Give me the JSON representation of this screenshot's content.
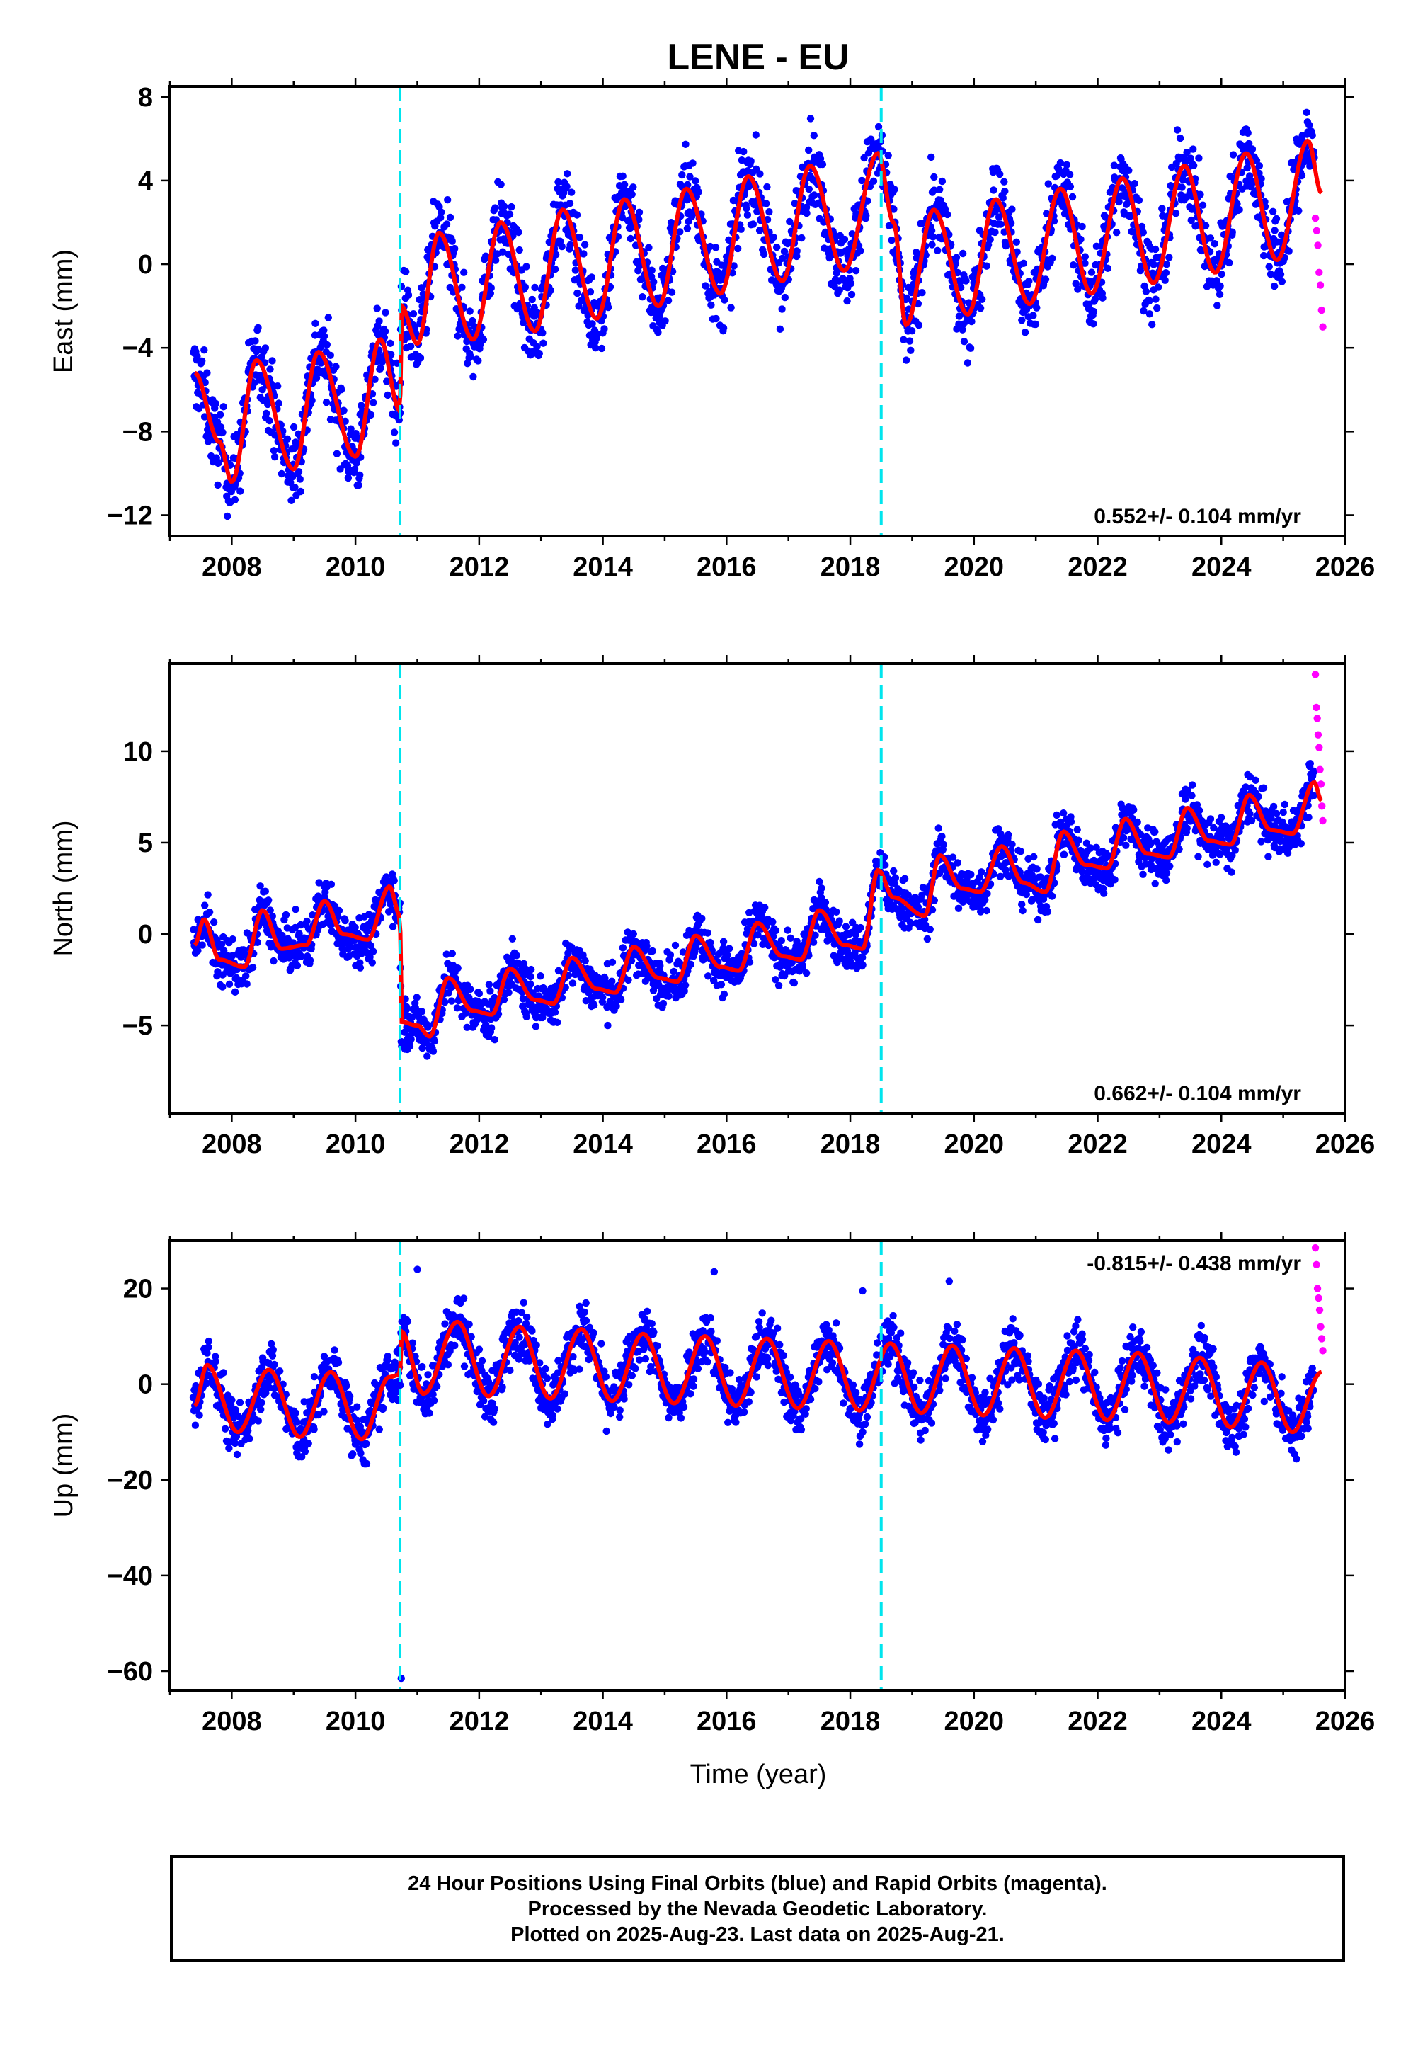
{
  "chart_data": {
    "type": "scatter",
    "title": "LENE - EU",
    "xlabel": "Time (year)",
    "xlim": [
      2007.0,
      2026.0
    ],
    "xticks": [
      2008,
      2010,
      2012,
      2014,
      2016,
      2018,
      2020,
      2022,
      2024,
      2026
    ],
    "steps": [
      2010.72,
      2018.5
    ],
    "colors": {
      "final": "#0000ff",
      "rapid": "#ff00ff",
      "model": "#ff0000",
      "step": "#00e5ee"
    },
    "data_span": [
      2007.38,
      2025.5
    ],
    "rapid_span": [
      2025.52,
      2025.64
    ],
    "panels": [
      {
        "name": "east",
        "ylabel": "East (mm)",
        "ylim": [
          -13,
          8.5
        ],
        "yticks": [
          -12,
          -8,
          -4,
          0,
          4,
          8
        ],
        "rate": "0.552+/- 0.104 mm/yr",
        "rate_position": "bottom-right",
        "model_points": [
          [
            2007.4,
            -5.2
          ],
          [
            2007.8,
            -8.5
          ],
          [
            2008.0,
            -10.4
          ],
          [
            2008.4,
            -4.6
          ],
          [
            2009.0,
            -9.8
          ],
          [
            2009.4,
            -4.2
          ],
          [
            2010.0,
            -9.2
          ],
          [
            2010.4,
            -3.6
          ],
          [
            2010.72,
            -7.0
          ],
          [
            2010.74,
            -2.0
          ],
          [
            2011.0,
            -3.8
          ],
          [
            2011.35,
            1.5
          ],
          [
            2011.9,
            -3.6
          ],
          [
            2012.35,
            2.0
          ],
          [
            2012.9,
            -3.2
          ],
          [
            2013.35,
            2.6
          ],
          [
            2013.9,
            -2.6
          ],
          [
            2014.35,
            3.1
          ],
          [
            2014.9,
            -2.0
          ],
          [
            2015.35,
            3.6
          ],
          [
            2015.9,
            -1.4
          ],
          [
            2016.35,
            4.2
          ],
          [
            2016.9,
            -0.8
          ],
          [
            2017.35,
            4.7
          ],
          [
            2017.9,
            -0.3
          ],
          [
            2018.45,
            5.3
          ],
          [
            2018.7,
            2.0
          ],
          [
            2018.9,
            -2.9
          ],
          [
            2019.35,
            2.6
          ],
          [
            2019.9,
            -2.4
          ],
          [
            2020.35,
            3.1
          ],
          [
            2020.9,
            -1.9
          ],
          [
            2021.4,
            3.6
          ],
          [
            2021.9,
            -1.4
          ],
          [
            2022.4,
            4.1
          ],
          [
            2022.9,
            -0.9
          ],
          [
            2023.4,
            4.7
          ],
          [
            2023.9,
            -0.4
          ],
          [
            2024.4,
            5.3
          ],
          [
            2024.9,
            0.2
          ],
          [
            2025.4,
            5.9
          ],
          [
            2025.62,
            3.4
          ]
        ],
        "scatter_spread": 1.8,
        "rapid_values": [
          2.2,
          1.6,
          0.9,
          -0.4,
          -1.0,
          -2.2,
          -3.0
        ]
      },
      {
        "name": "north",
        "ylabel": "North (mm)",
        "ylim": [
          -9.8,
          14.8
        ],
        "yticks": [
          -5,
          0,
          5,
          10
        ],
        "rate": "0.662+/- 0.104 mm/yr",
        "rate_position": "bottom-right",
        "model_points": [
          [
            2007.4,
            -0.6
          ],
          [
            2007.55,
            0.8
          ],
          [
            2007.8,
            -1.4
          ],
          [
            2008.2,
            -1.8
          ],
          [
            2008.5,
            1.3
          ],
          [
            2008.8,
            -0.8
          ],
          [
            2009.2,
            -0.6
          ],
          [
            2009.5,
            1.8
          ],
          [
            2009.8,
            0.0
          ],
          [
            2010.2,
            -0.3
          ],
          [
            2010.55,
            2.6
          ],
          [
            2010.72,
            1.0
          ],
          [
            2010.74,
            -4.8
          ],
          [
            2011.0,
            -5.0
          ],
          [
            2011.2,
            -5.6
          ],
          [
            2011.5,
            -2.4
          ],
          [
            2011.9,
            -4.2
          ],
          [
            2012.2,
            -4.4
          ],
          [
            2012.5,
            -1.9
          ],
          [
            2012.9,
            -3.6
          ],
          [
            2013.2,
            -3.8
          ],
          [
            2013.5,
            -1.3
          ],
          [
            2013.9,
            -3.0
          ],
          [
            2014.2,
            -3.2
          ],
          [
            2014.5,
            -0.7
          ],
          [
            2014.9,
            -2.4
          ],
          [
            2015.2,
            -2.6
          ],
          [
            2015.5,
            -0.1
          ],
          [
            2015.9,
            -1.8
          ],
          [
            2016.2,
            -2.0
          ],
          [
            2016.5,
            0.6
          ],
          [
            2016.9,
            -1.2
          ],
          [
            2017.2,
            -1.4
          ],
          [
            2017.5,
            1.3
          ],
          [
            2017.9,
            -0.6
          ],
          [
            2018.2,
            -0.8
          ],
          [
            2018.45,
            3.5
          ],
          [
            2018.7,
            2.0
          ],
          [
            2019.2,
            1.0
          ],
          [
            2019.45,
            4.3
          ],
          [
            2019.8,
            2.5
          ],
          [
            2020.1,
            2.3
          ],
          [
            2020.45,
            4.8
          ],
          [
            2020.8,
            2.8
          ],
          [
            2021.15,
            2.3
          ],
          [
            2021.45,
            5.6
          ],
          [
            2021.8,
            3.8
          ],
          [
            2022.15,
            3.6
          ],
          [
            2022.45,
            6.3
          ],
          [
            2022.8,
            4.4
          ],
          [
            2023.15,
            4.2
          ],
          [
            2023.45,
            6.9
          ],
          [
            2023.8,
            5.1
          ],
          [
            2024.15,
            4.9
          ],
          [
            2024.45,
            7.6
          ],
          [
            2024.8,
            5.7
          ],
          [
            2025.15,
            5.5
          ],
          [
            2025.5,
            8.3
          ],
          [
            2025.62,
            7.3
          ]
        ],
        "scatter_spread": 1.3,
        "rapid_values": [
          14.2,
          12.4,
          11.8,
          10.9,
          10.2,
          9.0,
          8.2,
          7.0,
          6.2
        ]
      },
      {
        "name": "up",
        "ylabel": "Up (mm)",
        "ylim": [
          -64,
          30
        ],
        "yticks": [
          -60,
          -40,
          -20,
          0,
          20
        ],
        "rate": "-0.815+/- 0.438 mm/yr",
        "rate_position": "top-right",
        "model_points": [
          [
            2007.4,
            -4.5
          ],
          [
            2007.6,
            4.0
          ],
          [
            2008.1,
            -10.0
          ],
          [
            2008.6,
            3.0
          ],
          [
            2009.1,
            -11.0
          ],
          [
            2009.6,
            2.5
          ],
          [
            2010.1,
            -11.5
          ],
          [
            2010.55,
            1.5
          ],
          [
            2010.72,
            2.0
          ],
          [
            2010.74,
            11.0
          ],
          [
            2011.1,
            -2.0
          ],
          [
            2011.65,
            13.0
          ],
          [
            2012.15,
            -2.5
          ],
          [
            2012.65,
            12.0
          ],
          [
            2013.15,
            -3.0
          ],
          [
            2013.65,
            11.5
          ],
          [
            2014.15,
            -3.5
          ],
          [
            2014.65,
            10.5
          ],
          [
            2015.15,
            -4.0
          ],
          [
            2015.65,
            10.0
          ],
          [
            2016.15,
            -4.5
          ],
          [
            2016.65,
            9.5
          ],
          [
            2017.15,
            -5.0
          ],
          [
            2017.65,
            9.0
          ],
          [
            2018.15,
            -5.5
          ],
          [
            2018.65,
            8.5
          ],
          [
            2019.15,
            -6.0
          ],
          [
            2019.65,
            8.0
          ],
          [
            2020.15,
            -6.5
          ],
          [
            2020.65,
            7.5
          ],
          [
            2021.15,
            -7.0
          ],
          [
            2021.65,
            7.0
          ],
          [
            2022.15,
            -7.5
          ],
          [
            2022.65,
            6.5
          ],
          [
            2023.15,
            -8.0
          ],
          [
            2023.65,
            5.5
          ],
          [
            2024.15,
            -9.0
          ],
          [
            2024.65,
            4.5
          ],
          [
            2025.15,
            -10.0
          ],
          [
            2025.62,
            2.5
          ]
        ],
        "scatter_spread": 5.5,
        "rapid_values": [
          28.5,
          25.0,
          20.0,
          18.0,
          15.5,
          12.0,
          9.5,
          7.0
        ],
        "outliers": [
          [
            2010.74,
            -61.5
          ],
          [
            2011.0,
            24.0
          ],
          [
            2015.8,
            23.5
          ],
          [
            2018.2,
            19.5
          ],
          [
            2019.6,
            21.5
          ]
        ]
      }
    ]
  },
  "footer": {
    "line1": "24 Hour Positions Using Final Orbits (blue) and Rapid Orbits (magenta).",
    "line2": "Processed by the Nevada Geodetic Laboratory.",
    "line3": "Plotted on 2025-Aug-23. Last data on 2025-Aug-21."
  }
}
